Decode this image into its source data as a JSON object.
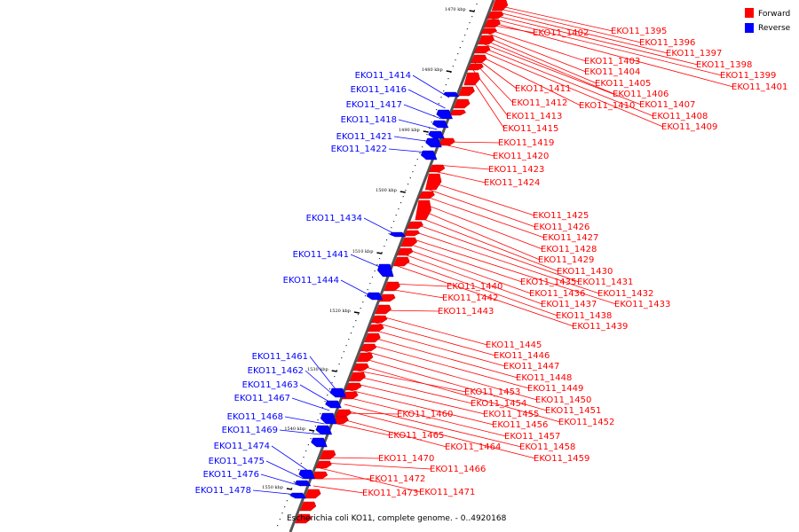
{
  "legend": [
    {
      "label": "Forward",
      "color": "#ff0000"
    },
    {
      "label": "Reverse",
      "color": "#0000ff"
    }
  ],
  "caption": "Escherichia coli KO11, complete genome. - 0..4920168",
  "colors": {
    "forward": "#ff0000",
    "reverse": "#0000ff",
    "backbone": "#555555"
  },
  "ticks": [
    "1470 kbp",
    "1480 kbp",
    "1490 kbp",
    "1500 kbp",
    "1510 kbp",
    "1520 kbp",
    "1530 kbp",
    "1540 kbp",
    "1550 kbp"
  ],
  "forward_genes": [
    "EKO11_1395",
    "EKO11_1396",
    "EKO11_1397",
    "EKO11_1398",
    "EKO11_1399",
    "EKO11_1401",
    "EKO11_1402",
    "EKO11_1403",
    "EKO11_1404",
    "EKO11_1405",
    "EKO11_1406",
    "EKO11_1407",
    "EKO11_1408",
    "EKO11_1409",
    "EKO11_1410",
    "EKO11_1411",
    "EKO11_1412",
    "EKO11_1413",
    "EKO11_1415",
    "EKO11_1419",
    "EKO11_1420",
    "EKO11_1423",
    "EKO11_1424",
    "EKO11_1425",
    "EKO11_1426",
    "EKO11_1427",
    "EKO11_1428",
    "EKO11_1429",
    "EKO11_1430",
    "EKO11_1431",
    "EKO11_1432",
    "EKO11_1433",
    "EKO11_1435",
    "EKO11_1436",
    "EKO11_1437",
    "EKO11_1438",
    "EKO11_1439",
    "EKO11_1440",
    "EKO11_1442",
    "EKO11_1443",
    "EKO11_1445",
    "EKO11_1446",
    "EKO11_1447",
    "EKO11_1448",
    "EKO11_1449",
    "EKO11_1450",
    "EKO11_1451",
    "EKO11_1452",
    "EKO11_1453",
    "EKO11_1454",
    "EKO11_1455",
    "EKO11_1456",
    "EKO11_1457",
    "EKO11_1458",
    "EKO11_1459",
    "EKO11_1460",
    "EKO11_1464",
    "EKO11_1465",
    "EKO11_1466",
    "EKO11_1470",
    "EKO11_1471",
    "EKO11_1472",
    "EKO11_1473"
  ],
  "reverse_genes": [
    "EKO11_1414",
    "EKO11_1416",
    "EKO11_1417",
    "EKO11_1418",
    "EKO11_1421",
    "EKO11_1422",
    "EKO11_1434",
    "EKO11_1441",
    "EKO11_1444",
    "EKO11_1461",
    "EKO11_1462",
    "EKO11_1463",
    "EKO11_1467",
    "EKO11_1468",
    "EKO11_1469",
    "EKO11_1474",
    "EKO11_1475",
    "EKO11_1476",
    "EKO11_1478"
  ]
}
